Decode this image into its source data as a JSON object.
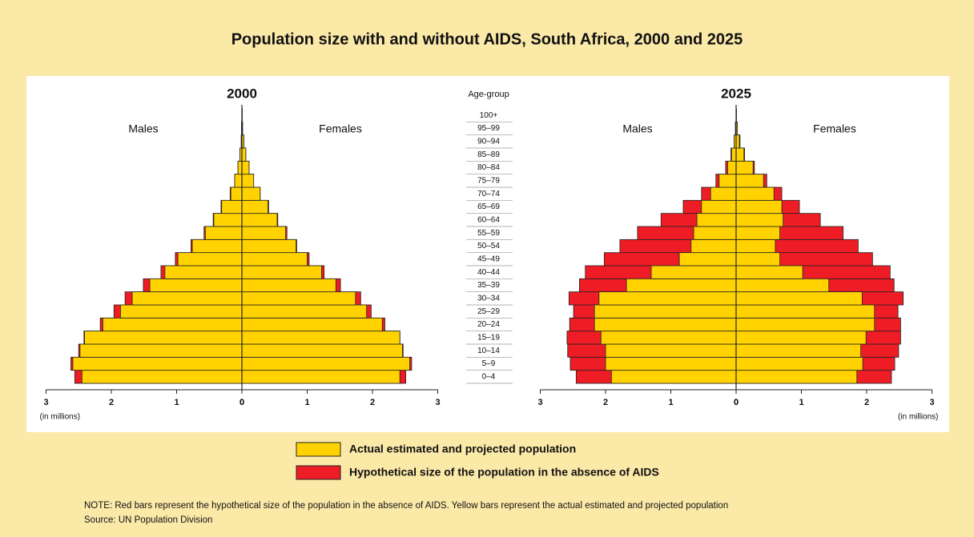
{
  "chart_data": {
    "type": "pyramid",
    "title": "Population size with and without AIDS, South Africa, 2000 and 2025",
    "category_label": "Age-group",
    "categories": [
      "0–4",
      "5–9",
      "10–14",
      "15–19",
      "20–24",
      "25–29",
      "30–34",
      "35–39",
      "40–44",
      "45–49",
      "50–54",
      "55–59",
      "60–64",
      "65–69",
      "70–74",
      "75–79",
      "80–84",
      "85–89",
      "90–94",
      "95–99",
      "100+"
    ],
    "x_label": "(in millions)",
    "xlim": [
      0,
      3
    ],
    "xticks": [
      0,
      1,
      2,
      3
    ],
    "series": [
      {
        "name": "Actual estimated and projected population",
        "color": "#ffd200"
      },
      {
        "name": "Hypothetical size of the population in the absence of AIDS",
        "color": "#ee1c25"
      }
    ],
    "panels": [
      {
        "title": "2000",
        "left_label": "Males",
        "right_label": "Females",
        "series": [
          {
            "males": [
              2.45,
              2.59,
              2.48,
              2.41,
              2.13,
              1.86,
              1.68,
              1.41,
              1.18,
              0.98,
              0.76,
              0.56,
              0.43,
              0.31,
              0.17,
              0.11,
              0.06,
              0.03,
              0.01,
              0.005,
              0
            ],
            "females": [
              2.42,
              2.57,
              2.46,
              2.42,
              2.15,
              1.91,
              1.74,
              1.44,
              1.22,
              1.0,
              0.83,
              0.67,
              0.54,
              0.4,
              0.28,
              0.18,
              0.11,
              0.06,
              0.03,
              0.01,
              0.005
            ]
          },
          {
            "males": [
              2.56,
              2.62,
              2.5,
              2.42,
              2.17,
              1.96,
              1.79,
              1.51,
              1.24,
              1.02,
              0.78,
              0.58,
              0.44,
              0.32,
              0.18,
              0.11,
              0.06,
              0.03,
              0.01,
              0.005,
              0
            ],
            "females": [
              2.51,
              2.6,
              2.47,
              2.42,
              2.19,
              1.98,
              1.82,
              1.51,
              1.26,
              1.03,
              0.84,
              0.69,
              0.55,
              0.41,
              0.28,
              0.18,
              0.11,
              0.06,
              0.03,
              0.01,
              0.005
            ]
          }
        ]
      },
      {
        "title": "2025",
        "left_label": "Males",
        "right_label": "Females",
        "series": [
          {
            "males": [
              1.91,
              2.0,
              2.0,
              2.07,
              2.17,
              2.17,
              2.1,
              1.68,
              1.3,
              0.87,
              0.69,
              0.65,
              0.6,
              0.53,
              0.39,
              0.26,
              0.13,
              0.07,
              0.03,
              0.01,
              0
            ],
            "females": [
              1.85,
              1.94,
              1.91,
              1.99,
              2.12,
              2.12,
              1.93,
              1.42,
              1.02,
              0.67,
              0.6,
              0.67,
              0.72,
              0.7,
              0.58,
              0.42,
              0.26,
              0.12,
              0.05,
              0.02,
              0.005
            ]
          },
          {
            "males": [
              2.45,
              2.54,
              2.58,
              2.59,
              2.55,
              2.49,
              2.56,
              2.4,
              2.31,
              2.02,
              1.78,
              1.51,
              1.15,
              0.81,
              0.53,
              0.31,
              0.16,
              0.08,
              0.03,
              0.01,
              0
            ],
            "females": [
              2.38,
              2.43,
              2.49,
              2.52,
              2.52,
              2.48,
              2.56,
              2.42,
              2.36,
              2.09,
              1.87,
              1.64,
              1.29,
              0.97,
              0.7,
              0.47,
              0.28,
              0.13,
              0.06,
              0.02,
              0.005
            ]
          }
        ]
      }
    ]
  },
  "note": "NOTE: Red bars represent the hypothetical size of the population in the absence of AIDS. Yellow bars represent the actual estimated and projected population",
  "source": "Source: UN Population Division"
}
